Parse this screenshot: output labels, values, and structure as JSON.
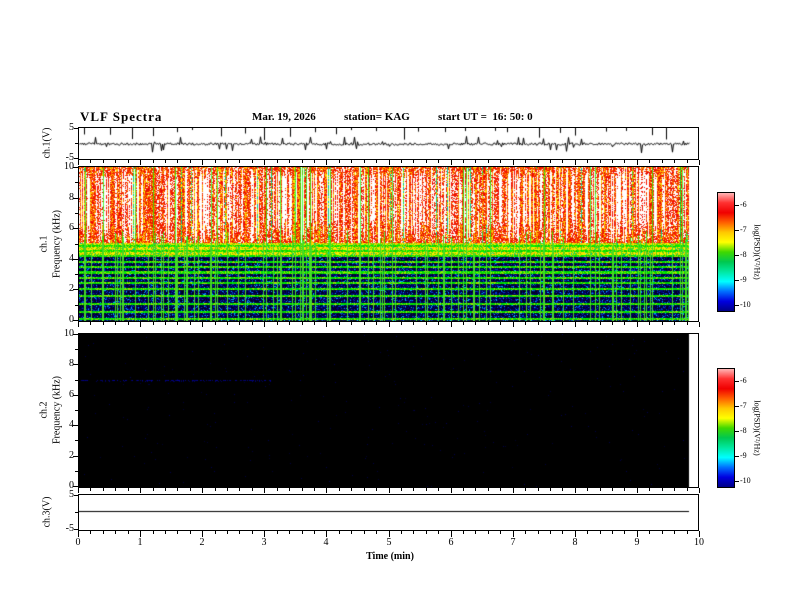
{
  "header": {
    "title": "VLF Spectra",
    "date": "Mar. 19, 2026",
    "station": "station= KAG",
    "start_ut": "start UT =  16: 50: 0"
  },
  "panels": {
    "ch1_wave": {
      "label": "ch.1(V)"
    },
    "ch1_spec": {
      "label_ch": "ch.1",
      "label_freq": "Frequency (kHz)"
    },
    "ch2_spec": {
      "label_ch": "ch.2",
      "label_freq": "Frequency (kHz)"
    },
    "ch3_wave": {
      "label": "ch.3(V)"
    }
  },
  "axes": {
    "time_label": "Time (min)",
    "time_ticks": [
      "0",
      "1",
      "2",
      "3",
      "4",
      "5",
      "6",
      "7",
      "8",
      "9",
      "10"
    ],
    "freq_ticks": [
      "10",
      "8",
      "6",
      "4",
      "2",
      "0"
    ],
    "volt_ticks": [
      "5",
      "-5"
    ]
  },
  "colorbar": {
    "label": "log(PSD)(V²/Hz)",
    "ticks": [
      "-6",
      "-7",
      "-8",
      "-9",
      "-10"
    ],
    "colors_top_to_bottom": [
      "#ffb6b6",
      "#ff3030",
      "#f00000",
      "#ff6000",
      "#ffc800",
      "#ffff00",
      "#40d800",
      "#00c850",
      "#00e8a0",
      "#00ffff",
      "#0070ff",
      "#0000e0",
      "#000088"
    ]
  },
  "chart_data": {
    "type": "heatmap",
    "title": "VLF Spectra",
    "station": "KAG",
    "date": "Mar. 19, 2026",
    "start_ut": "16:50:0",
    "x_axis": {
      "label": "Time (min)",
      "range": [
        0,
        10
      ],
      "data_end_min": 9.85,
      "minor_tick_step_min": 0.2
    },
    "color_scale": {
      "label": "log(PSD)(V²/Hz)",
      "range": [
        -10,
        -6
      ]
    },
    "panels": [
      {
        "name": "ch.1 voltage waveform",
        "ylabel": "ch.1(V)",
        "ylim": [
          -5,
          5
        ],
        "content": "low-amplitude noise around 0 V with irregular impulsive spikes; irregular saturation tick marks hang from the top edge of the frame"
      },
      {
        "name": "ch.1 spectrogram",
        "ylabel": "Frequency (kHz)",
        "ylim": [
          0,
          10
        ],
        "color_range_log_psd": [
          -10,
          -6
        ],
        "content": "intense broadband emission above ~4.5 kHz (log PSD -6 to -7: red with frequent white saturated vertical striations); yellow-green transition band 4.2-5.1 kHz; dark ~-10 background below 4 kHz with narrowband green horizontal lines and many full-band impulsive green vertical streaks",
        "narrowband_lines_khz": [
          0.12,
          0.6,
          1.1,
          1.6,
          2.1,
          2.45,
          2.8,
          3.15,
          3.5,
          3.85,
          4.2,
          4.55,
          4.9
        ]
      },
      {
        "name": "ch.2 spectrogram",
        "ylabel": "Frequency (kHz)",
        "ylim": [
          0,
          10
        ],
        "color_range_log_psd": [
          -10,
          -6
        ],
        "content": "no signal: uniform ~-10 (black) field; faint intermittent dark-blue narrowband line near 7.0 kHz during the first ~3 minutes",
        "faint_line_khz": 7.0,
        "faint_line_extent_min": [
          0,
          3.1
        ]
      },
      {
        "name": "ch.3 voltage waveform",
        "ylabel": "ch.3(V)",
        "ylim": [
          -5,
          5
        ],
        "content": "flat constant trace near +0.4 V for the whole record"
      }
    ],
    "colorbars": [
      {
        "for": "ch.1 spectrogram",
        "label": "log(PSD)(V²/Hz)",
        "ticks": [
          -6,
          -7,
          -8,
          -9,
          -10
        ]
      },
      {
        "for": "ch.2 spectrogram",
        "label": "log(PSD)(V²/Hz)",
        "ticks": [
          -6,
          -7,
          -8,
          -9,
          -10
        ]
      }
    ]
  }
}
